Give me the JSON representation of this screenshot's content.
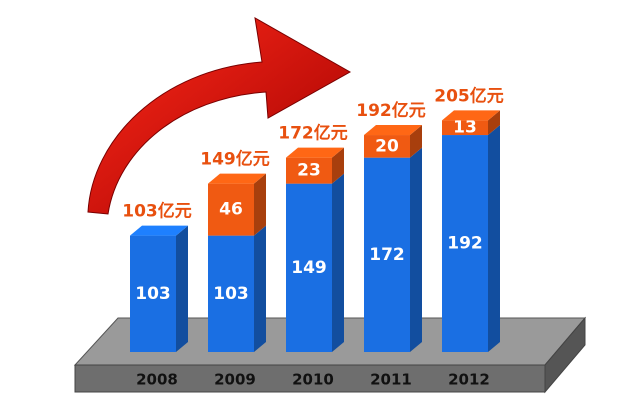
{
  "chart_data": {
    "type": "bar3d-stacked",
    "categories": [
      "2008",
      "2009",
      "2010",
      "2011",
      "2012"
    ],
    "series": [
      {
        "color": "#1a6fe3",
        "values": [
          103,
          103,
          149,
          172,
          192
        ]
      },
      {
        "color": "#f05a12",
        "values": [
          null,
          46,
          23,
          20,
          13
        ]
      }
    ],
    "total_labels": [
      "103亿元",
      "149亿元",
      "172亿元",
      "192亿元",
      "205亿元"
    ],
    "label_color": "#e8500f"
  }
}
